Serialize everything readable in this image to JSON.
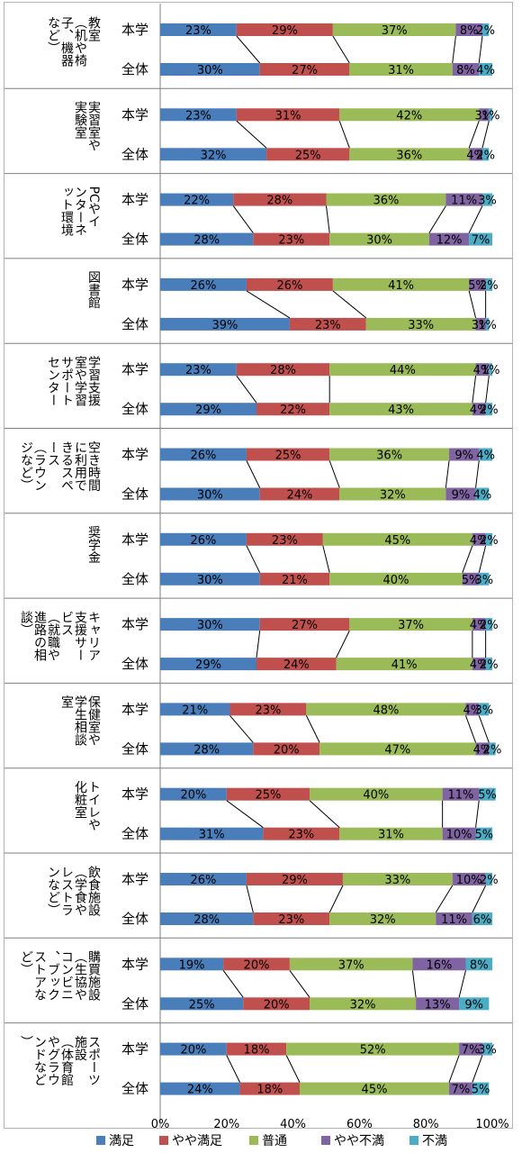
{
  "chart_data": {
    "type": "bar",
    "stacked": true,
    "orientation": "horizontal",
    "percent_stacked": true,
    "xlim": [
      0,
      100
    ],
    "x_tick_labels": [
      "0%",
      "20%",
      "40%",
      "60%",
      "80%",
      "100%"
    ],
    "row_labels": [
      "本学",
      "全体"
    ],
    "series_names": [
      "満足",
      "やや満足",
      "普通",
      "やや不満",
      "不満"
    ],
    "colors": [
      "#4a7ebb",
      "#c0504d",
      "#9bbb59",
      "#8064a2",
      "#4bacc6"
    ],
    "legend_position": "bottom",
    "series_lines": true,
    "categories": [
      {
        "label": "教室（机や椅子、機器など）",
        "rows": [
          [
            23,
            29,
            37,
            8,
            2
          ],
          [
            30,
            27,
            31,
            8,
            4
          ]
        ]
      },
      {
        "label": "実習室や実験室",
        "rows": [
          [
            23,
            31,
            42,
            3,
            1
          ],
          [
            32,
            25,
            36,
            4,
            2
          ]
        ]
      },
      {
        "label": "PCやインターネット環境",
        "rows": [
          [
            22,
            28,
            36,
            11,
            3
          ],
          [
            28,
            23,
            30,
            12,
            7
          ]
        ]
      },
      {
        "label": "図書館",
        "rows": [
          [
            26,
            26,
            41,
            5,
            2
          ],
          [
            39,
            23,
            33,
            3,
            1
          ]
        ]
      },
      {
        "label": "学習支援室や学習サポートセンター",
        "rows": [
          [
            23,
            28,
            44,
            4,
            1
          ],
          [
            29,
            22,
            43,
            4,
            2
          ]
        ]
      },
      {
        "label": "空き時間に利用できるスペース（ラウンジなど）",
        "rows": [
          [
            26,
            25,
            36,
            9,
            4
          ],
          [
            30,
            24,
            32,
            9,
            4
          ]
        ]
      },
      {
        "label": "奨学金",
        "rows": [
          [
            26,
            23,
            45,
            4,
            2
          ],
          [
            30,
            21,
            40,
            5,
            3
          ]
        ]
      },
      {
        "label": "キャリア支援サービス（就職や進路の相談）",
        "rows": [
          [
            30,
            27,
            37,
            4,
            2
          ],
          [
            29,
            24,
            41,
            4,
            2
          ]
        ]
      },
      {
        "label": "保健室や学生相談室",
        "rows": [
          [
            21,
            23,
            48,
            4,
            3
          ],
          [
            28,
            20,
            47,
            4,
            2
          ]
        ]
      },
      {
        "label": "トイレや化粧室",
        "rows": [
          [
            20,
            25,
            40,
            11,
            5
          ],
          [
            31,
            23,
            31,
            10,
            5
          ]
        ]
      },
      {
        "label": "飲食施設（学食やレストランなど）",
        "rows": [
          [
            26,
            29,
            33,
            10,
            2
          ],
          [
            28,
            23,
            32,
            11,
            6
          ]
        ]
      },
      {
        "label": "購買施設（生協やコンビニ、ブックストアなど）",
        "rows": [
          [
            19,
            20,
            37,
            16,
            8
          ],
          [
            25,
            20,
            32,
            13,
            9
          ]
        ]
      },
      {
        "label": "スポーツ施設（体育館やグラウンドなど）",
        "rows": [
          [
            20,
            18,
            52,
            7,
            3
          ],
          [
            24,
            18,
            45,
            7,
            5
          ]
        ]
      }
    ]
  }
}
